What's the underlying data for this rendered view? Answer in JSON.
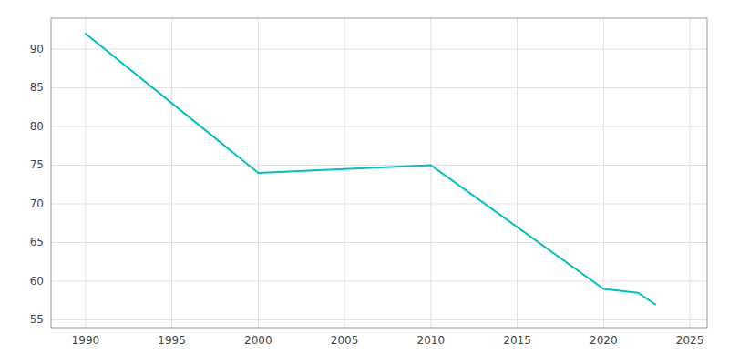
{
  "chart_data": {
    "type": "line",
    "x": [
      1990,
      2000,
      2005,
      2010,
      2020,
      2022,
      2023
    ],
    "values": [
      92,
      74,
      74.5,
      75,
      59,
      58.5,
      57
    ],
    "color": "#00BFBF",
    "xlim": [
      1988,
      2026
    ],
    "xticks": [
      1990,
      1995,
      2000,
      2005,
      2010,
      2015,
      2020,
      2025
    ],
    "ylim": [
      54,
      94
    ],
    "yticks": [
      55,
      60,
      65,
      70,
      75,
      80,
      85,
      90
    ],
    "grid": true
  }
}
